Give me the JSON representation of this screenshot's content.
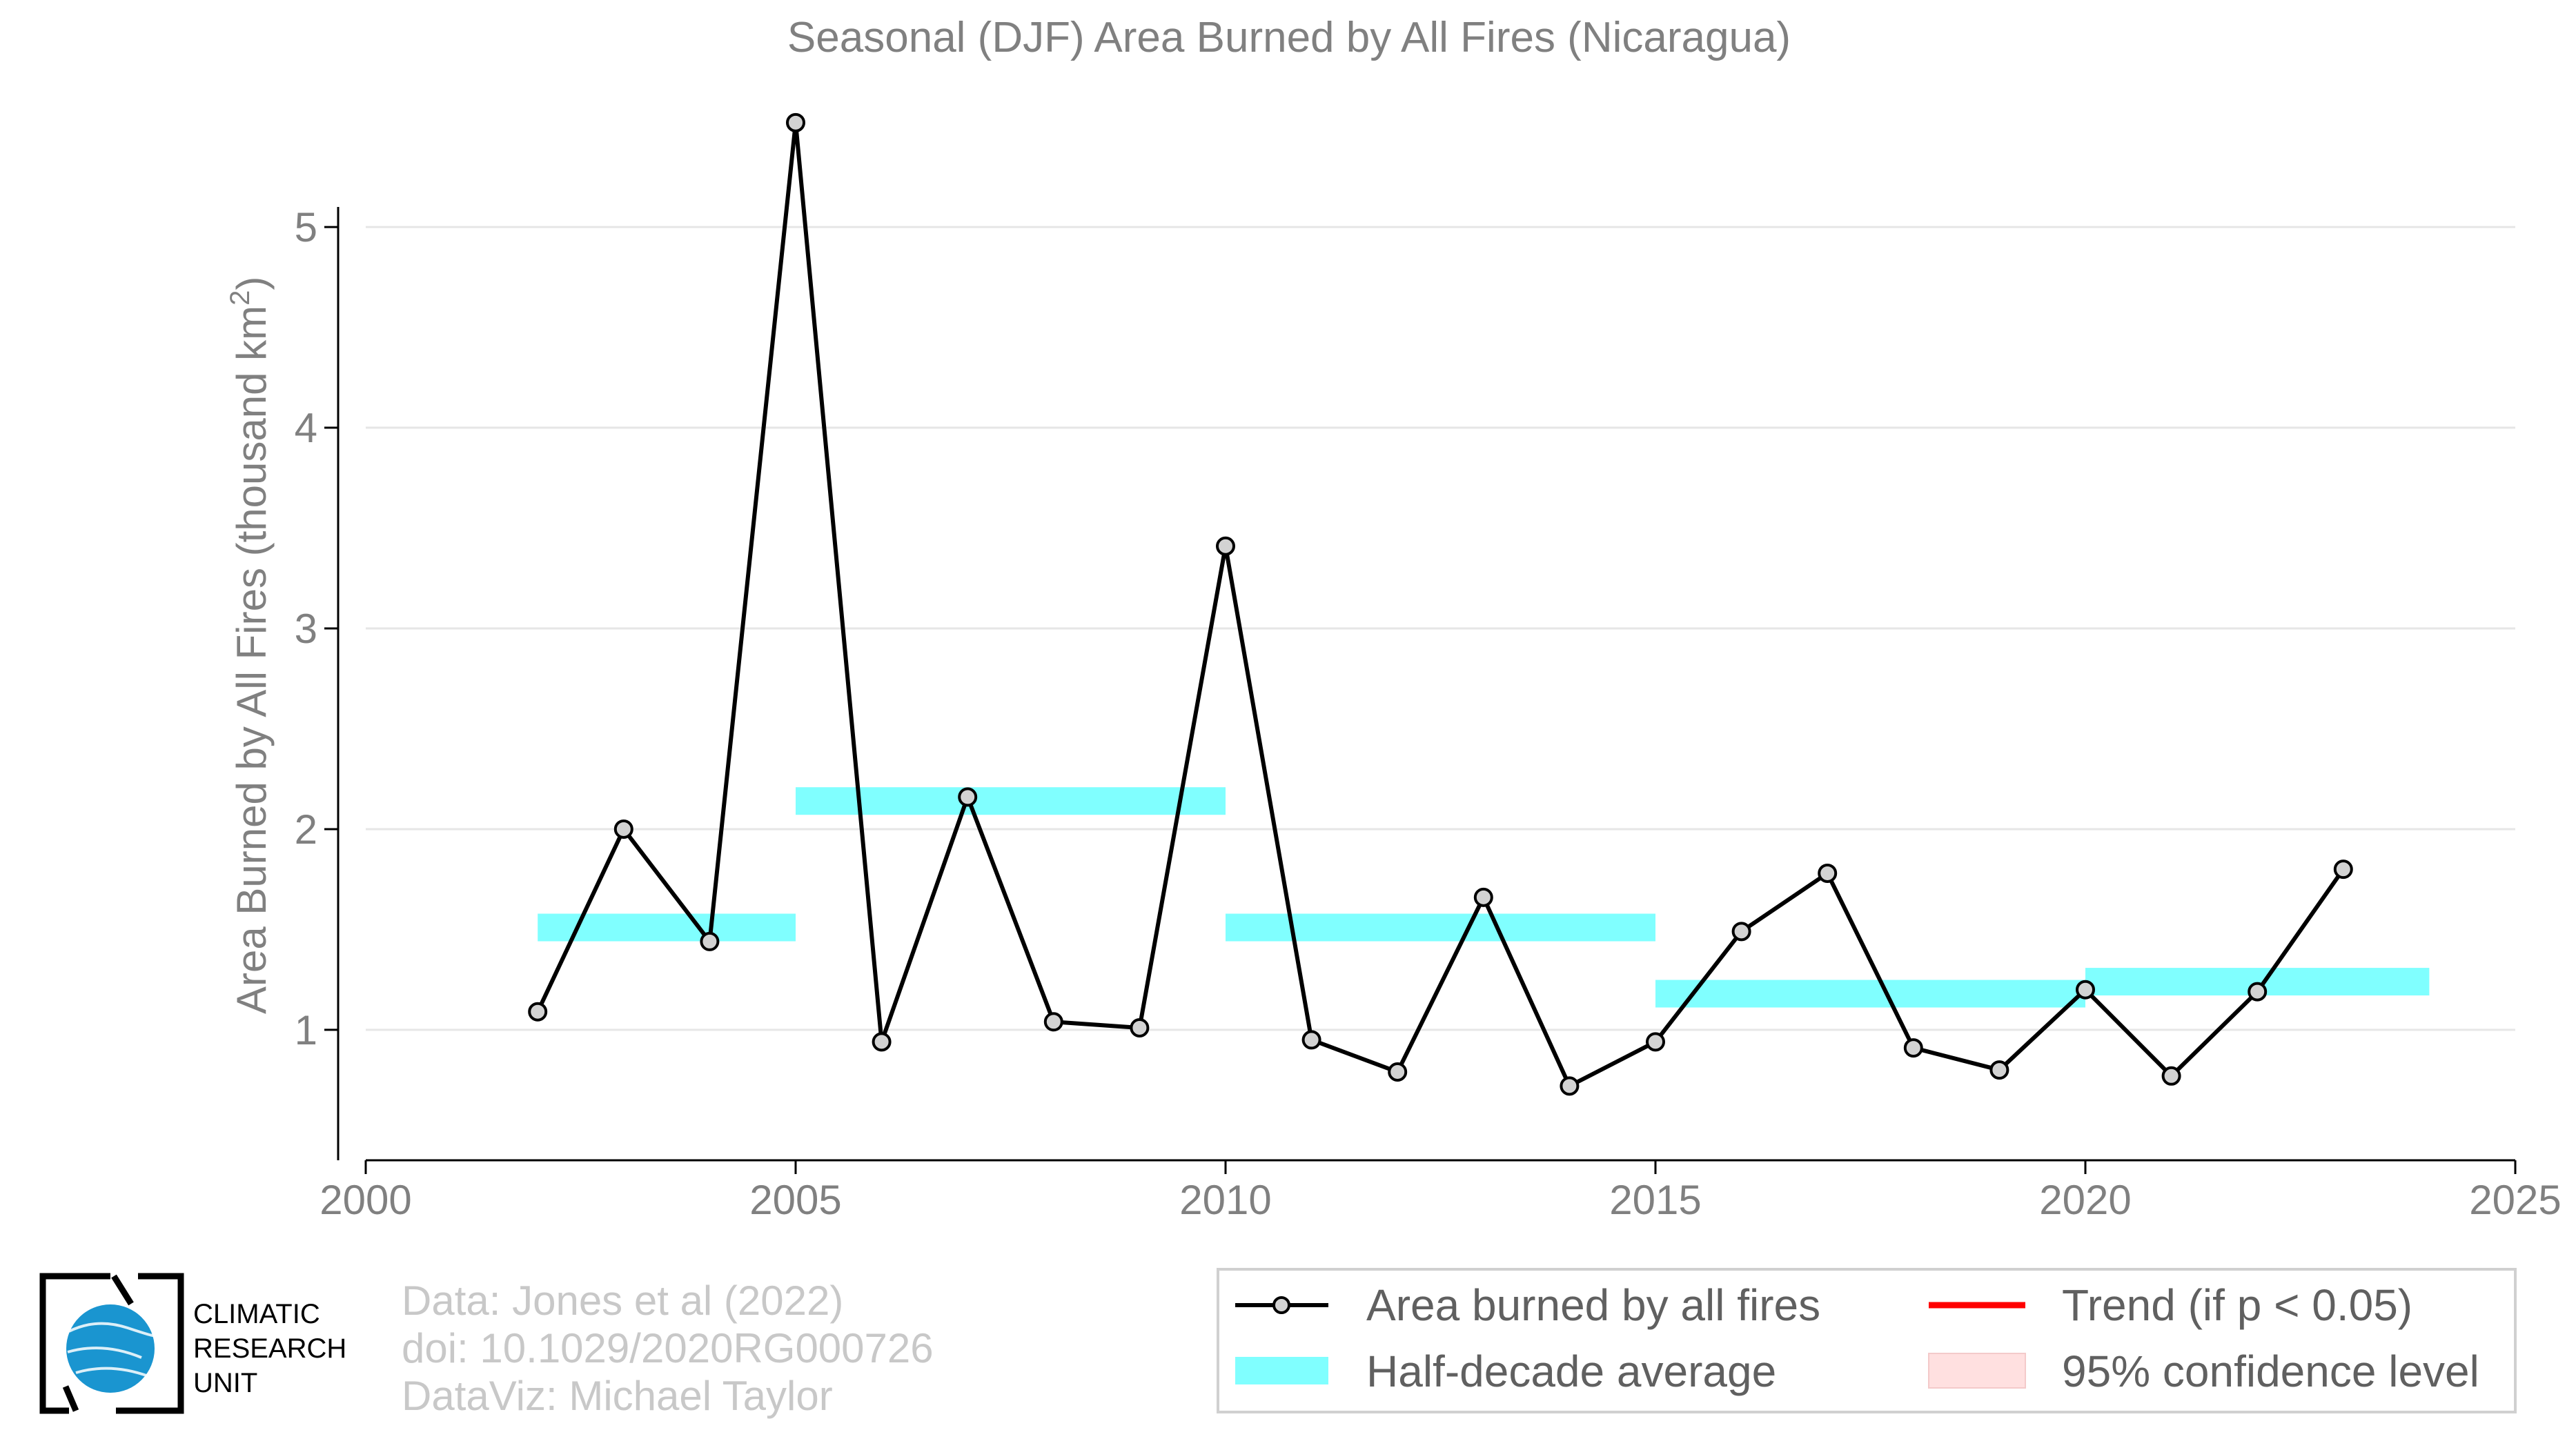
{
  "chart_data": {
    "type": "line",
    "title": "Seasonal (DJF) Area Burned by All Fires (Nicaragua)",
    "ylabel": "Area Burned by All Fires (thousand km",
    "ylabel_sup": "2",
    "ylabel_close": ")",
    "xlim": [
      2000,
      2025
    ],
    "ylim": [
      0.35,
      5.65
    ],
    "x_ticks": [
      2000,
      2005,
      2010,
      2015,
      2020,
      2025
    ],
    "y_ticks": [
      1,
      2,
      3,
      4,
      5
    ],
    "grid": "horizontal",
    "series": [
      {
        "name": "Area burned by all fires",
        "color": "#000000",
        "x": [
          2002,
          2003,
          2004,
          2005,
          2006,
          2007,
          2008,
          2009,
          2010,
          2011,
          2012,
          2013,
          2014,
          2015,
          2016,
          2017,
          2018,
          2019,
          2020,
          2021,
          2022,
          2023
        ],
        "y": [
          1.09,
          2.0,
          1.44,
          5.52,
          0.94,
          2.16,
          1.04,
          1.01,
          3.41,
          0.95,
          0.79,
          1.66,
          0.72,
          0.94,
          1.49,
          1.78,
          0.91,
          0.8,
          1.2,
          0.77,
          1.19,
          1.8
        ]
      }
    ],
    "half_decade_average": {
      "name": "Half-decade average",
      "color": "#80ffff",
      "segments": [
        {
          "x_start": 2002,
          "x_end": 2005,
          "y": 1.51
        },
        {
          "x_start": 2005,
          "x_end": 2010,
          "y": 2.14
        },
        {
          "x_start": 2010,
          "x_end": 2015,
          "y": 1.51
        },
        {
          "x_start": 2015,
          "x_end": 2020,
          "y": 1.18
        },
        {
          "x_start": 2020,
          "x_end": 2024,
          "y": 1.24
        }
      ]
    },
    "legend": {
      "position": "bottom-right",
      "items": [
        {
          "label": "Area burned by all fires",
          "kind": "line-marker",
          "color": "#000000"
        },
        {
          "label": "Trend (if p < 0.05)",
          "kind": "line",
          "color": "#ff0000"
        },
        {
          "label": "Half-decade average",
          "kind": "band",
          "color": "#80ffff"
        },
        {
          "label": "95% confidence level",
          "kind": "patch",
          "color": "#ffe0e0"
        }
      ]
    }
  },
  "credits": {
    "line1": "Data: Jones et al (2022)",
    "line2": "doi: 10.1029/2020RG000726",
    "line3": "DataViz: Michael Taylor"
  },
  "logo": {
    "line1": "CLIMATIC",
    "line2": "RESEARCH",
    "line3": "UNIT"
  }
}
